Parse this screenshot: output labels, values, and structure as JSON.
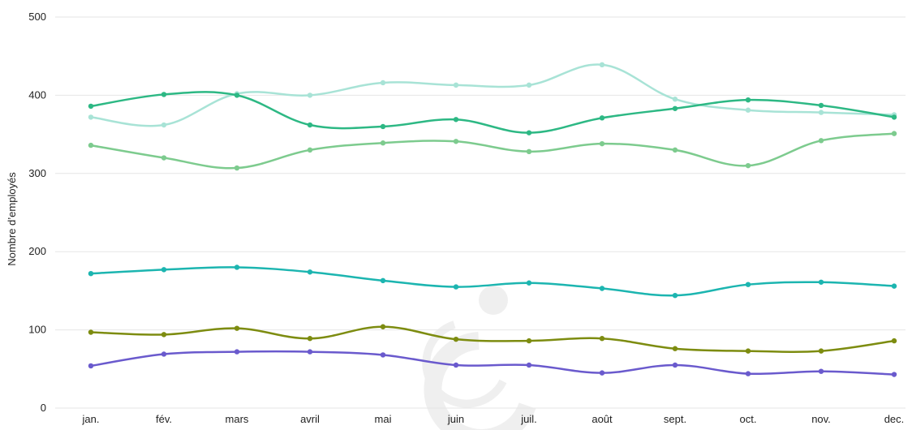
{
  "chart_data": {
    "type": "line",
    "title": "",
    "xlabel": "",
    "ylabel": "Nombre d’employés",
    "categories": [
      "jan.",
      "fév.",
      "mars",
      "avril",
      "mai",
      "juin",
      "juil.",
      "août",
      "sept.",
      "oct.",
      "nov.",
      "dec."
    ],
    "ylim": [
      0,
      500
    ],
    "yticks": [
      0,
      100,
      200,
      300,
      400,
      500
    ],
    "grid": true,
    "legend": "none",
    "series": [
      {
        "color": "#a8e3d6",
        "values": [
          372,
          362,
          402,
          400,
          416,
          413,
          413,
          439,
          395,
          381,
          378,
          375
        ]
      },
      {
        "color": "#2db884",
        "values": [
          386,
          401,
          400,
          362,
          360,
          369,
          352,
          371,
          383,
          394,
          387,
          372
        ]
      },
      {
        "color": "#7dcb8e",
        "values": [
          336,
          320,
          307,
          330,
          339,
          341,
          328,
          338,
          330,
          310,
          342,
          351
        ]
      },
      {
        "color": "#1cb5b0",
        "values": [
          172,
          177,
          180,
          174,
          163,
          155,
          160,
          153,
          144,
          158,
          161,
          156
        ]
      },
      {
        "color": "#7d8c10",
        "values": [
          97,
          94,
          102,
          89,
          104,
          88,
          86,
          89,
          76,
          73,
          73,
          86
        ]
      },
      {
        "color": "#6a5acd",
        "values": [
          54,
          69,
          72,
          72,
          68,
          55,
          55,
          45,
          55,
          44,
          47,
          43
        ]
      }
    ]
  }
}
